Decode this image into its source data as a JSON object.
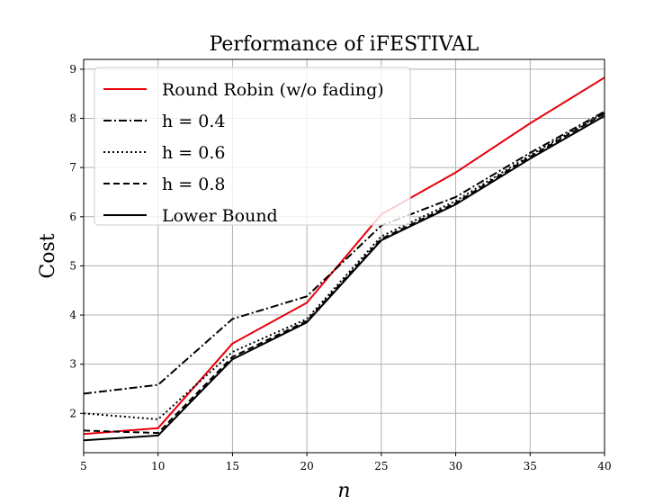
{
  "chart_data": {
    "type": "line",
    "title": "Performance of iFESTIVAL",
    "xlabel": "n",
    "ylabel": "Cost",
    "xlim": [
      5,
      40
    ],
    "ylim": [
      1.2,
      9.2
    ],
    "xticks": [
      5,
      10,
      15,
      20,
      25,
      30,
      35,
      40
    ],
    "yticks": [
      2,
      3,
      4,
      5,
      6,
      7,
      8,
      9
    ],
    "grid": true,
    "legend_position": "top-left",
    "x": [
      5,
      10,
      15,
      20,
      25,
      30,
      35,
      40
    ],
    "series": [
      {
        "name": "Round Robin (w/o fading)",
        "color": "#e8000b",
        "style": "solid",
        "values": [
          1.58,
          1.7,
          3.42,
          4.25,
          6.05,
          6.9,
          7.9,
          8.83
        ]
      },
      {
        "name": "h = 0.4",
        "color": "#000000",
        "style": "dashdot",
        "values": [
          2.4,
          2.58,
          3.92,
          4.38,
          5.82,
          6.4,
          7.3,
          8.14
        ]
      },
      {
        "name": "h = 0.6",
        "color": "#000000",
        "style": "dotted",
        "values": [
          2.0,
          1.88,
          3.25,
          3.92,
          5.6,
          6.32,
          7.25,
          8.12
        ]
      },
      {
        "name": "h = 0.8",
        "color": "#000000",
        "style": "dashed",
        "values": [
          1.65,
          1.6,
          3.15,
          3.88,
          5.55,
          6.28,
          7.22,
          8.1
        ]
      },
      {
        "name": "Lower Bound",
        "color": "#000000",
        "style": "solid",
        "values": [
          1.45,
          1.55,
          3.1,
          3.85,
          5.52,
          6.25,
          7.18,
          8.05
        ]
      }
    ]
  }
}
